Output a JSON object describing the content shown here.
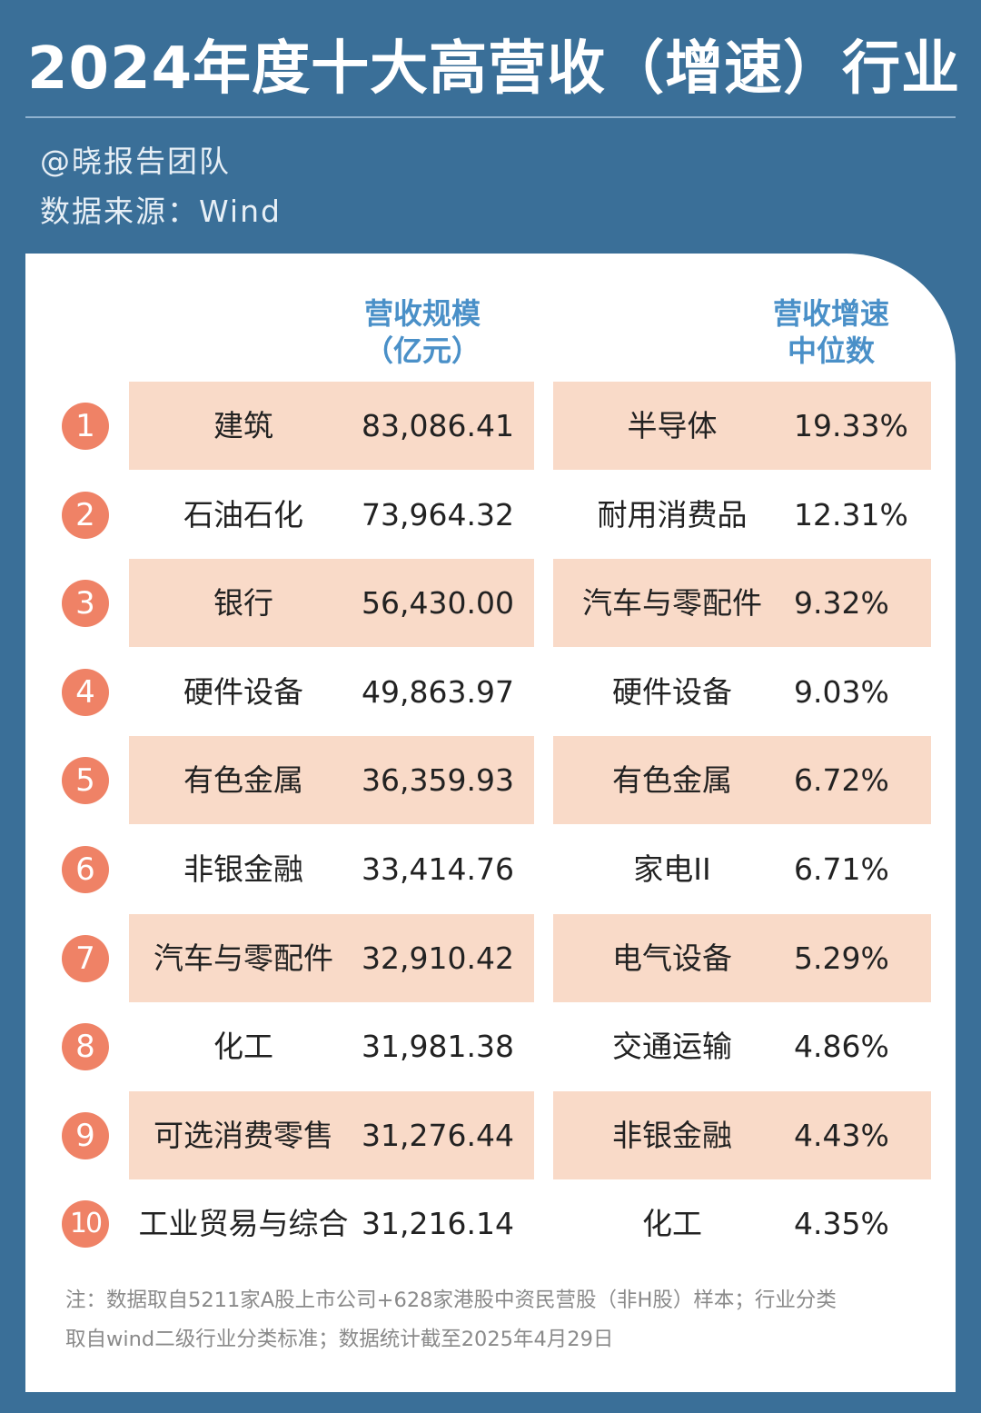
{
  "title": "2024年度十大高营收（增速）行业",
  "author": "@晓报告团队",
  "source": "数据来源：Wind",
  "headers": {
    "revenue": [
      "营收规模",
      "（亿元）"
    ],
    "growth": [
      "营收增速",
      "中位数"
    ]
  },
  "rows": [
    {
      "rank": "1",
      "rev_industry": "建筑",
      "rev_value": "83,086.41",
      "growth_industry": "半导体",
      "growth_value": "19.33%"
    },
    {
      "rank": "2",
      "rev_industry": "石油石化",
      "rev_value": "73,964.32",
      "growth_industry": "耐用消费品",
      "growth_value": "12.31%"
    },
    {
      "rank": "3",
      "rev_industry": "银行",
      "rev_value": "56,430.00",
      "growth_industry": "汽车与零配件",
      "growth_value": "9.32%"
    },
    {
      "rank": "4",
      "rev_industry": "硬件设备",
      "rev_value": "49,863.97",
      "growth_industry": "硬件设备",
      "growth_value": "9.03%"
    },
    {
      "rank": "5",
      "rev_industry": "有色金属",
      "rev_value": "36,359.93",
      "growth_industry": "有色金属",
      "growth_value": "6.72%"
    },
    {
      "rank": "6",
      "rev_industry": "非银金融",
      "rev_value": "33,414.76",
      "growth_industry": "家电II",
      "growth_value": "6.71%"
    },
    {
      "rank": "7",
      "rev_industry": "汽车与零配件",
      "rev_value": "32,910.42",
      "growth_industry": "电气设备",
      "growth_value": "5.29%"
    },
    {
      "rank": "8",
      "rev_industry": "化工",
      "rev_value": "31,981.38",
      "growth_industry": "交通运输",
      "growth_value": "4.86%"
    },
    {
      "rank": "9",
      "rev_industry": "可选消费零售",
      "rev_value": "31,276.44",
      "growth_industry": "非银金融",
      "growth_value": "4.43%"
    },
    {
      "rank": "10",
      "rev_industry": "工业贸易与综合",
      "rev_value": "31,216.14",
      "growth_industry": "化工",
      "growth_value": "4.35%"
    }
  ],
  "note": [
    "注：数据取自5211家A股上市公司+628家港股中资民营股（非H股）样本；行业分类",
    "取自wind二级行业分类标准；数据统计截至2025年4月29日"
  ],
  "colors": {
    "background": "#3a6f98",
    "accent": "#ef8266",
    "row_highlight": "#f9dac8",
    "header_text": "#4a90c8"
  }
}
